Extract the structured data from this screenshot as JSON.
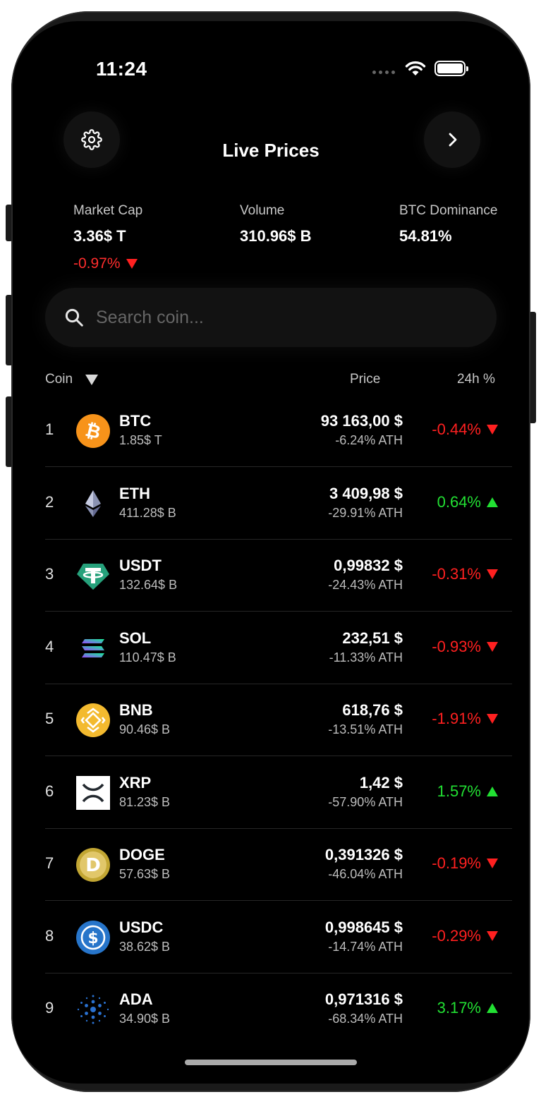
{
  "status_bar": {
    "time": "11:24"
  },
  "header": {
    "title": "Live Prices",
    "left_icon": "gear-icon",
    "right_icon": "chevron-right-icon"
  },
  "stats": {
    "market_cap": {
      "label": "Market Cap",
      "value": "3.36$ T",
      "change": "-0.97%"
    },
    "volume": {
      "label": "Volume",
      "value": "310.96$ B"
    },
    "btc_dominance": {
      "label": "BTC Dominance",
      "value": "54.81%"
    }
  },
  "search": {
    "placeholder": "Search coin..."
  },
  "table_header": {
    "coin": "Coin",
    "price": "Price",
    "change": "24h %"
  },
  "colors": {
    "negative": "#ff2020",
    "positive": "#22e033",
    "background": "#000000"
  },
  "coins": [
    {
      "rank": "1",
      "symbol": "BTC",
      "cap": "1.85$ T",
      "price": "93 163,00 $",
      "ath": "-6.24% ATH",
      "change": "-0.44%",
      "direction": "down",
      "icon": "bitcoin-icon"
    },
    {
      "rank": "2",
      "symbol": "ETH",
      "cap": "411.28$ B",
      "price": "3 409,98 $",
      "ath": "-29.91% ATH",
      "change": "0.64%",
      "direction": "up",
      "icon": "ethereum-icon"
    },
    {
      "rank": "3",
      "symbol": "USDT",
      "cap": "132.64$ B",
      "price": "0,99832 $",
      "ath": "-24.43% ATH",
      "change": "-0.31%",
      "direction": "down",
      "icon": "tether-icon"
    },
    {
      "rank": "4",
      "symbol": "SOL",
      "cap": "110.47$ B",
      "price": "232,51 $",
      "ath": "-11.33% ATH",
      "change": "-0.93%",
      "direction": "down",
      "icon": "solana-icon"
    },
    {
      "rank": "5",
      "symbol": "BNB",
      "cap": "90.46$ B",
      "price": "618,76 $",
      "ath": "-13.51% ATH",
      "change": "-1.91%",
      "direction": "down",
      "icon": "bnb-icon"
    },
    {
      "rank": "6",
      "symbol": "XRP",
      "cap": "81.23$ B",
      "price": "1,42 $",
      "ath": "-57.90% ATH",
      "change": "1.57%",
      "direction": "up",
      "icon": "xrp-icon"
    },
    {
      "rank": "7",
      "symbol": "DOGE",
      "cap": "57.63$ B",
      "price": "0,391326 $",
      "ath": "-46.04% ATH",
      "change": "-0.19%",
      "direction": "down",
      "icon": "dogecoin-icon"
    },
    {
      "rank": "8",
      "symbol": "USDC",
      "cap": "38.62$ B",
      "price": "0,998645 $",
      "ath": "-14.74% ATH",
      "change": "-0.29%",
      "direction": "down",
      "icon": "usdc-icon"
    },
    {
      "rank": "9",
      "symbol": "ADA",
      "cap": "34.90$ B",
      "price": "0,971316 $",
      "ath": "-68.34% ATH",
      "change": "3.17%",
      "direction": "up",
      "icon": "cardano-icon"
    }
  ]
}
